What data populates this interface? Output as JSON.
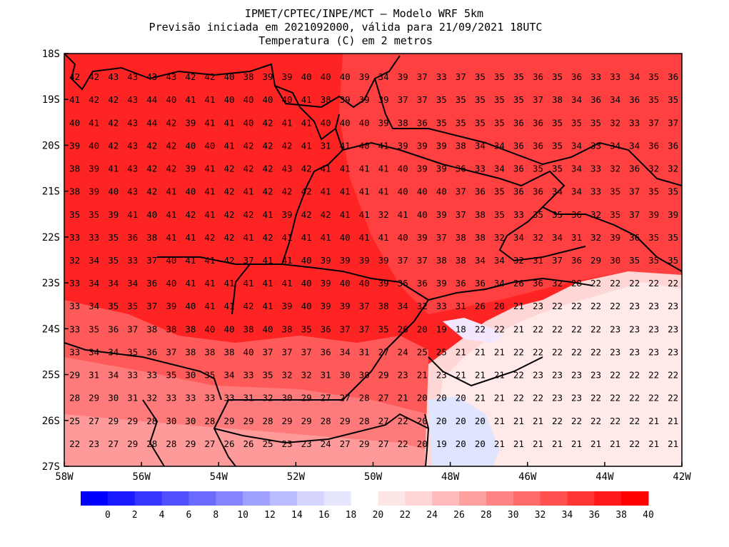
{
  "title": {
    "line1": "IPMET/CPTEC/INPE/MCT – Modelo WRF 5km",
    "line2": "Previsão iniciada em 2021092000, válida para 21/09/2021 18UTC",
    "line3": "Temperatura (C) em 2 metros"
  },
  "map": {
    "lon_range": [
      -58,
      -42
    ],
    "lat_range": [
      -27,
      -18
    ],
    "lon_ticks": [
      {
        "value": -58,
        "label": "58W"
      },
      {
        "value": -56,
        "label": "56W"
      },
      {
        "value": -54,
        "label": "54W"
      },
      {
        "value": -52,
        "label": "52W"
      },
      {
        "value": -50,
        "label": "50W"
      },
      {
        "value": -48,
        "label": "48W"
      },
      {
        "value": -46,
        "label": "46W"
      },
      {
        "value": -44,
        "label": "44W"
      },
      {
        "value": -42,
        "label": "42W"
      }
    ],
    "lat_ticks": [
      {
        "value": -18,
        "label": "18S"
      },
      {
        "value": -19,
        "label": "19S"
      },
      {
        "value": -20,
        "label": "20S"
      },
      {
        "value": -21,
        "label": "21S"
      },
      {
        "value": -22,
        "label": "22S"
      },
      {
        "value": -23,
        "label": "23S"
      },
      {
        "value": -24,
        "label": "24S"
      },
      {
        "value": -25,
        "label": "25S"
      },
      {
        "value": -26,
        "label": "26S"
      },
      {
        "value": -27,
        "label": "27S"
      }
    ],
    "grid_lon_start": -57.95,
    "grid_lon_step": 0.5,
    "grid_lat_start": -18.5,
    "grid_lat_step": -0.5,
    "values": [
      [
        42,
        42,
        43,
        43,
        43,
        43,
        42,
        42,
        40,
        38,
        39,
        39,
        40,
        40,
        40,
        39,
        34,
        39,
        37,
        33,
        37,
        35,
        35,
        35,
        36,
        35,
        36,
        33,
        33,
        34,
        35,
        36
      ],
      [
        41,
        42,
        42,
        43,
        44,
        40,
        41,
        41,
        40,
        40,
        40,
        40,
        41,
        38,
        39,
        39,
        39,
        37,
        37,
        35,
        35,
        35,
        35,
        35,
        37,
        38,
        34,
        36,
        34,
        36,
        35,
        35
      ],
      [
        40,
        41,
        42,
        43,
        44,
        42,
        39,
        41,
        41,
        40,
        42,
        41,
        41,
        40,
        40,
        40,
        39,
        38,
        36,
        35,
        35,
        35,
        35,
        36,
        36,
        35,
        35,
        35,
        32,
        33,
        37,
        37
      ],
      [
        39,
        40,
        42,
        43,
        42,
        42,
        40,
        40,
        41,
        42,
        42,
        42,
        41,
        31,
        41,
        40,
        41,
        39,
        39,
        39,
        38,
        34,
        34,
        36,
        36,
        35,
        34,
        33,
        34,
        34,
        36,
        36
      ],
      [
        38,
        39,
        41,
        43,
        42,
        42,
        39,
        41,
        42,
        42,
        42,
        43,
        42,
        41,
        41,
        41,
        41,
        40,
        39,
        39,
        36,
        33,
        34,
        36,
        35,
        35,
        34,
        33,
        32,
        36,
        32,
        32
      ],
      [
        38,
        39,
        40,
        43,
        42,
        41,
        40,
        41,
        42,
        41,
        42,
        42,
        42,
        41,
        41,
        41,
        41,
        40,
        40,
        40,
        37,
        36,
        35,
        36,
        36,
        34,
        34,
        33,
        35,
        37,
        35,
        35
      ],
      [
        35,
        35,
        39,
        41,
        40,
        41,
        42,
        41,
        42,
        42,
        41,
        39,
        42,
        42,
        41,
        41,
        32,
        41,
        40,
        39,
        37,
        38,
        35,
        33,
        35,
        35,
        36,
        32,
        35,
        37,
        39,
        39
      ],
      [
        33,
        33,
        35,
        36,
        38,
        41,
        41,
        42,
        42,
        41,
        42,
        41,
        41,
        41,
        40,
        41,
        41,
        40,
        39,
        37,
        38,
        38,
        32,
        34,
        32,
        34,
        31,
        32,
        39,
        36,
        35,
        35
      ],
      [
        32,
        34,
        35,
        33,
        37,
        40,
        41,
        41,
        42,
        37,
        41,
        41,
        40,
        39,
        39,
        39,
        39,
        37,
        37,
        38,
        38,
        34,
        34,
        32,
        31,
        37,
        36,
        29,
        30,
        35,
        35,
        35
      ],
      [
        33,
        34,
        34,
        34,
        36,
        40,
        41,
        41,
        41,
        41,
        41,
        41,
        40,
        39,
        40,
        40,
        39,
        36,
        36,
        39,
        36,
        36,
        34,
        26,
        36,
        32,
        28,
        22,
        22,
        22,
        22,
        22
      ],
      [
        33,
        34,
        35,
        35,
        37,
        39,
        40,
        41,
        41,
        42,
        41,
        39,
        40,
        39,
        39,
        37,
        38,
        34,
        32,
        33,
        31,
        26,
        20,
        21,
        23,
        22,
        22,
        22,
        22,
        23,
        23,
        23
      ],
      [
        33,
        35,
        36,
        37,
        38,
        38,
        38,
        40,
        40,
        38,
        40,
        38,
        35,
        36,
        37,
        37,
        35,
        26,
        20,
        19,
        18,
        22,
        22,
        21,
        22,
        22,
        22,
        22,
        23,
        23,
        23,
        23
      ],
      [
        33,
        34,
        34,
        35,
        36,
        37,
        38,
        38,
        38,
        40,
        37,
        37,
        37,
        36,
        34,
        31,
        27,
        24,
        25,
        25,
        21,
        21,
        21,
        22,
        22,
        22,
        22,
        22,
        23,
        23,
        23,
        23
      ],
      [
        29,
        31,
        34,
        33,
        33,
        35,
        30,
        35,
        34,
        33,
        35,
        32,
        32,
        31,
        30,
        30,
        29,
        23,
        21,
        23,
        21,
        21,
        21,
        22,
        23,
        23,
        23,
        23,
        22,
        22,
        22,
        22
      ],
      [
        28,
        29,
        30,
        31,
        32,
        33,
        33,
        33,
        33,
        31,
        32,
        30,
        29,
        27,
        27,
        28,
        27,
        21,
        20,
        20,
        20,
        21,
        21,
        22,
        22,
        23,
        23,
        22,
        22,
        22,
        22,
        22
      ],
      [
        25,
        27,
        29,
        29,
        28,
        30,
        30,
        28,
        29,
        29,
        28,
        29,
        29,
        28,
        29,
        28,
        27,
        22,
        20,
        20,
        20,
        20,
        21,
        21,
        21,
        22,
        22,
        22,
        22,
        22,
        21,
        21
      ],
      [
        22,
        23,
        27,
        29,
        28,
        28,
        29,
        27,
        26,
        26,
        25,
        23,
        23,
        24,
        27,
        29,
        27,
        22,
        20,
        19,
        20,
        20,
        21,
        21,
        21,
        21,
        21,
        21,
        21,
        22,
        21,
        21
      ]
    ]
  },
  "colorbar": {
    "labels": [
      "0",
      "2",
      "4",
      "6",
      "8",
      "10",
      "12",
      "14",
      "16",
      "18",
      "20",
      "22",
      "24",
      "26",
      "28",
      "30",
      "32",
      "34",
      "36",
      "38",
      "40"
    ],
    "colors": [
      "#0000ff",
      "#1a1aff",
      "#3535ff",
      "#5050ff",
      "#6b6bff",
      "#8585ff",
      "#a0a0ff",
      "#bbbbff",
      "#d5d5ff",
      "#e6e6ff",
      "#ffffff",
      "#ffe6e6",
      "#ffd5d5",
      "#ffbbbb",
      "#ffa0a0",
      "#ff8585",
      "#ff6b6b",
      "#ff5050",
      "#ff3535",
      "#ff1a1a",
      "#ff0000"
    ]
  }
}
